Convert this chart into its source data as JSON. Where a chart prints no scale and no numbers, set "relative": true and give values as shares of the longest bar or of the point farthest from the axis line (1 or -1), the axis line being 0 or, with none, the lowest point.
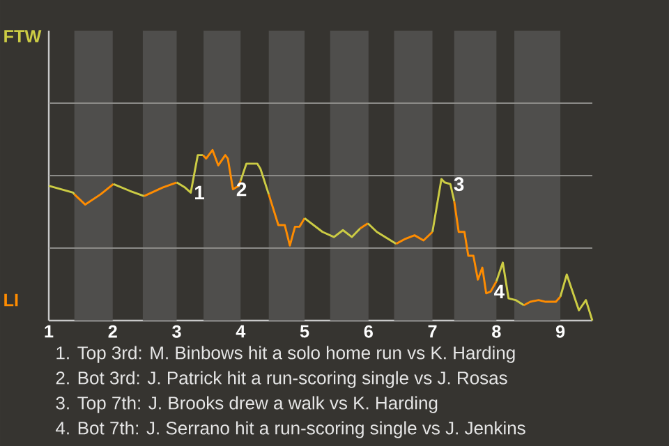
{
  "chart_data": {
    "type": "line",
    "relative": true,
    "xlim": [
      1,
      9.5
    ],
    "xticks": [
      1,
      2,
      3,
      4,
      5,
      6,
      7,
      8,
      9
    ],
    "marker": "none",
    "line_style": "solid",
    "ref_lines": [
      {
        "axis": "y",
        "value": 0.425,
        "color": "#8c8b88"
      },
      {
        "axis": "y",
        "value": 0.85,
        "color": "#8c8b88"
      },
      {
        "axis": "y",
        "value": 1.275,
        "color": "#8c8b88"
      }
    ],
    "bands": [
      {
        "axis": "x",
        "from": 1.4,
        "to": 2.0,
        "color": "#4f4e4c"
      },
      {
        "axis": "x",
        "from": 2.47,
        "to": 3.0,
        "color": "#4f4e4c"
      },
      {
        "axis": "x",
        "from": 3.42,
        "to": 4.0,
        "color": "#4f4e4c"
      },
      {
        "axis": "x",
        "from": 4.44,
        "to": 5.0,
        "color": "#4f4e4c"
      },
      {
        "axis": "x",
        "from": 5.4,
        "to": 6.0,
        "color": "#4f4e4c"
      },
      {
        "axis": "x",
        "from": 6.4,
        "to": 7.0,
        "color": "#4f4e4c"
      },
      {
        "axis": "x",
        "from": 7.34,
        "to": 8.0,
        "color": "#4f4e4c"
      },
      {
        "axis": "x",
        "from": 8.28,
        "to": 9.0,
        "color": "#4f4e4c"
      }
    ],
    "series": [
      {
        "color": "#cccc44",
        "x": [
          1.0,
          1.38,
          1.4
        ],
        "values": [
          0.79,
          0.75,
          0.74
        ]
      },
      {
        "color": "#ff8c00",
        "x": [
          1.4,
          1.57,
          1.81,
          2.01
        ],
        "values": [
          0.74,
          0.68,
          0.74,
          0.8
        ]
      },
      {
        "color": "#cccc44",
        "x": [
          2.01,
          2.27,
          2.49
        ],
        "values": [
          0.8,
          0.76,
          0.73
        ]
      },
      {
        "color": "#ff8c00",
        "x": [
          2.49,
          2.78,
          3.0
        ],
        "values": [
          0.73,
          0.78,
          0.81
        ]
      },
      {
        "color": "#cccc44",
        "x": [
          3.0,
          3.13,
          3.22,
          3.33,
          3.41
        ],
        "values": [
          0.81,
          0.78,
          0.75,
          0.97,
          0.97
        ]
      },
      {
        "color": "#ff8c00",
        "x": [
          3.41,
          3.46,
          3.56,
          3.65,
          3.76,
          3.8,
          3.88,
          3.97,
          4.0
        ],
        "values": [
          0.97,
          0.95,
          1,
          0.91,
          0.97,
          0.95,
          0.77,
          0.79,
          0.82
        ]
      },
      {
        "color": "#cccc44",
        "x": [
          4.0,
          4.09,
          4.26,
          4.31,
          4.44
        ],
        "values": [
          0.82,
          0.92,
          0.92,
          0.89,
          0.74
        ]
      },
      {
        "color": "#ff8c00",
        "x": [
          4.44,
          4.59,
          4.69,
          4.77,
          4.85,
          4.92,
          5.0
        ],
        "values": [
          0.74,
          0.56,
          0.56,
          0.44,
          0.55,
          0.55,
          0.6
        ]
      },
      {
        "color": "#cccc44",
        "x": [
          5.0,
          5.28,
          5.46,
          5.6,
          5.74,
          5.87
        ],
        "values": [
          0.6,
          0.52,
          0.49,
          0.53,
          0.49,
          0.54
        ]
      },
      {
        "color": "#ff8c00",
        "x": [
          5.87,
          5.99
        ],
        "values": [
          0.54,
          0.57
        ]
      },
      {
        "color": "#cccc44",
        "x": [
          5.99,
          6.13,
          6.43
        ],
        "values": [
          0.57,
          0.52,
          0.45
        ]
      },
      {
        "color": "#ff8c00",
        "x": [
          6.43,
          6.58,
          6.72,
          6.86,
          7.0
        ],
        "values": [
          0.45,
          0.48,
          0.5,
          0.47,
          0.52
        ]
      },
      {
        "color": "#cccc44",
        "x": [
          7.0,
          7.14,
          7.19,
          7.28,
          7.34
        ],
        "values": [
          0.52,
          0.83,
          0.81,
          0.8,
          0.7
        ]
      },
      {
        "color": "#ff8c00",
        "x": [
          7.34,
          7.41,
          7.5,
          7.56,
          7.64,
          7.71,
          7.78,
          7.84,
          7.91,
          8.0
        ],
        "values": [
          0.7,
          0.52,
          0.52,
          0.38,
          0.38,
          0.24,
          0.31,
          0.16,
          0.17,
          0.23
        ]
      },
      {
        "color": "#cccc44",
        "x": [
          8.0,
          8.1,
          8.19,
          8.3,
          8.43
        ],
        "values": [
          0.23,
          0.34,
          0.13,
          0.12,
          0.09
        ]
      },
      {
        "color": "#ff8c00",
        "x": [
          8.43,
          8.53,
          8.66,
          8.77,
          8.93,
          9.0
        ],
        "values": [
          0.09,
          0.11,
          0.12,
          0.11,
          0.11,
          0.14
        ]
      },
      {
        "color": "#cccc44",
        "x": [
          9.0,
          9.1,
          9.29,
          9.4,
          9.5
        ],
        "values": [
          0.14,
          0.27,
          0.06,
          0.12,
          0
        ]
      }
    ],
    "annotations": [
      {
        "text": "1",
        "x": 3.22,
        "y": 0.75
      },
      {
        "text": "2",
        "x": 3.88,
        "y": 0.77
      },
      {
        "text": "3",
        "x": 7.28,
        "y": 0.8
      },
      {
        "text": "4",
        "x": 7.91,
        "y": 0.17
      },
      "FTW",
      "LI",
      "1. Top 3rd: M. Binbows hit a solo home run vs K. Harding",
      "2. Bot 3rd: J. Patrick hit a run-scoring single vs J. Rosas",
      "3. Top 7th: J. Brooks drew a walk vs K. Harding",
      "4. Bot 7th: J. Serrano hit a run-scoring single vs J. Jenkins"
    ]
  }
}
